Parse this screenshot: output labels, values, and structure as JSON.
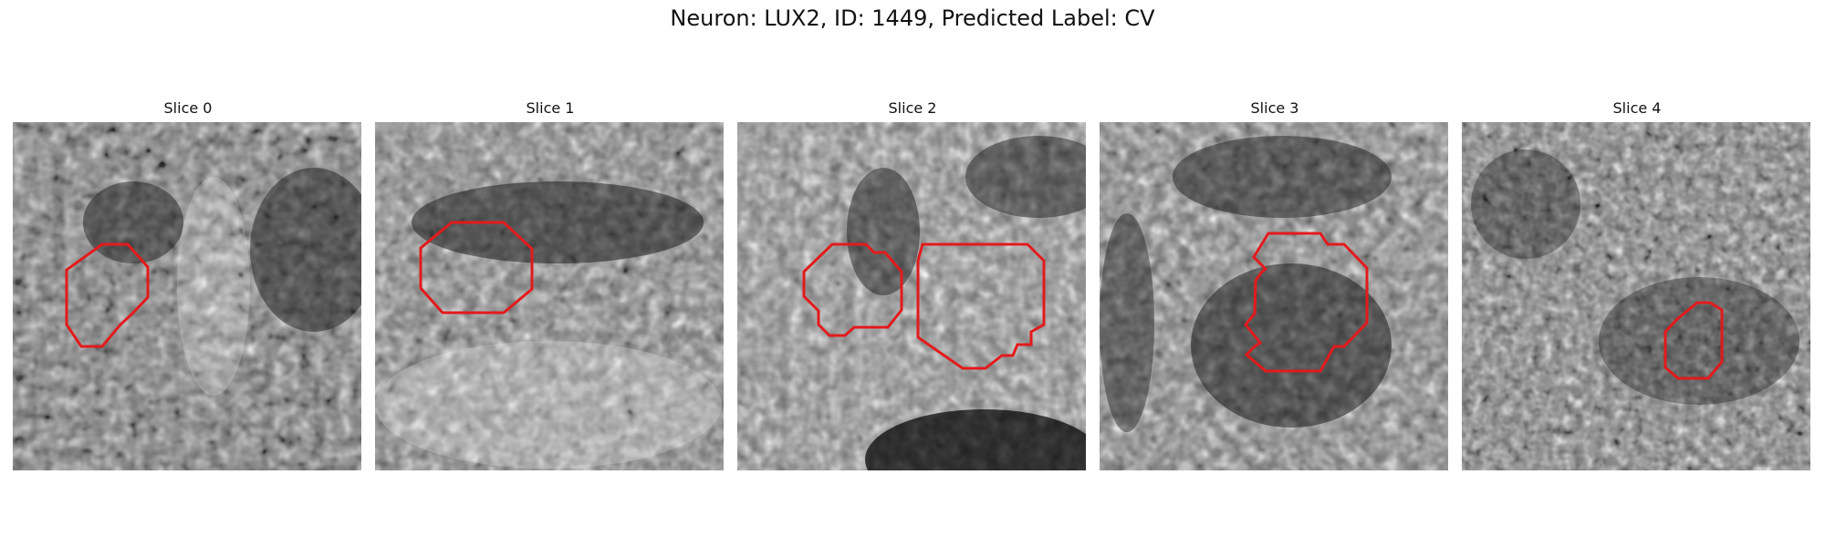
{
  "title": "Neuron: LUX2, ID: 1449, Predicted Label: CV",
  "slices": [
    {
      "label": "Slice 0"
    },
    {
      "label": "Slice 1"
    },
    {
      "label": "Slice 2"
    },
    {
      "label": "Slice 3"
    },
    {
      "label": "Slice 4"
    }
  ],
  "colors": {
    "contour": "#e31a1c",
    "image_cmap": "gray"
  }
}
